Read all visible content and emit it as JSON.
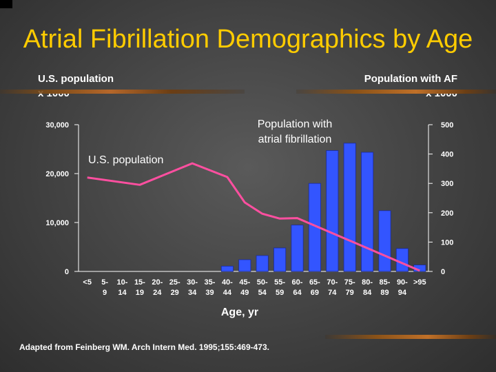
{
  "title": "Atrial Fibrillation Demographics by Age",
  "source": "Adapted from Feinberg WM. Arch Intern Med. 1995;155:469-473.",
  "colors": {
    "title": "#ffcc00",
    "bar": "#3355ff",
    "line": "#ff4fa0",
    "axis": "#ffffff"
  },
  "chart_data": {
    "type": "bar",
    "title": "Atrial Fibrillation Demographics by Age",
    "xlabel": "Age, yr",
    "ylabel_left": [
      "U.S. population",
      "x 1000"
    ],
    "ylabel_right": [
      "Population with AF",
      "x 1000"
    ],
    "categories": [
      "<5",
      "5-9",
      "10-14",
      "15-19",
      "20-24",
      "25-29",
      "30-34",
      "35-39",
      "40-44",
      "45-49",
      "50-54",
      "55-59",
      "60-64",
      "65-69",
      "70-74",
      "75-79",
      "80-84",
      "85-89",
      "90-94",
      ">95"
    ],
    "category_labels": [
      [
        "<5",
        ""
      ],
      [
        "5-",
        "9"
      ],
      [
        "10-",
        "14"
      ],
      [
        "15-",
        "19"
      ],
      [
        "20-",
        "24"
      ],
      [
        "25-",
        "29"
      ],
      [
        "30-",
        "34"
      ],
      [
        "35-",
        "39"
      ],
      [
        "40-",
        "44"
      ],
      [
        "45-",
        "49"
      ],
      [
        "50-",
        "54"
      ],
      [
        "55-",
        "59"
      ],
      [
        "60-",
        "64"
      ],
      [
        "65-",
        "69"
      ],
      [
        "70-",
        "74"
      ],
      [
        "75-",
        "79"
      ],
      [
        "80-",
        "84"
      ],
      [
        "85-",
        "89"
      ],
      [
        "90-",
        "94"
      ],
      [
        ">95",
        ""
      ]
    ],
    "yticks_left": [
      "0",
      "10,000",
      "20,000",
      "30,000"
    ],
    "yticks_right": [
      "0",
      "100",
      "200",
      "300",
      "400",
      "500"
    ],
    "ylim_left": [
      0,
      30000
    ],
    "ylim_right": [
      0,
      500
    ],
    "series": [
      {
        "name": "Population with atrial fibrillation",
        "axis": "right",
        "kind": "bar",
        "label_lines": [
          "Population with",
          "atrial fibrillation"
        ],
        "values": [
          0,
          0,
          0,
          0,
          0,
          0,
          0,
          0,
          18,
          40,
          54,
          80,
          158,
          300,
          412,
          437,
          406,
          207,
          78,
          22
        ]
      },
      {
        "name": "U.S. population",
        "axis": "left",
        "kind": "line",
        "label_lines": [
          "U.S. population"
        ],
        "values": [
          19200,
          null,
          null,
          17700,
          null,
          null,
          22100,
          null,
          19300,
          14100,
          11800,
          10800,
          10900,
          null,
          null,
          null,
          null,
          null,
          null,
          150
        ]
      }
    ],
    "grid": false
  }
}
